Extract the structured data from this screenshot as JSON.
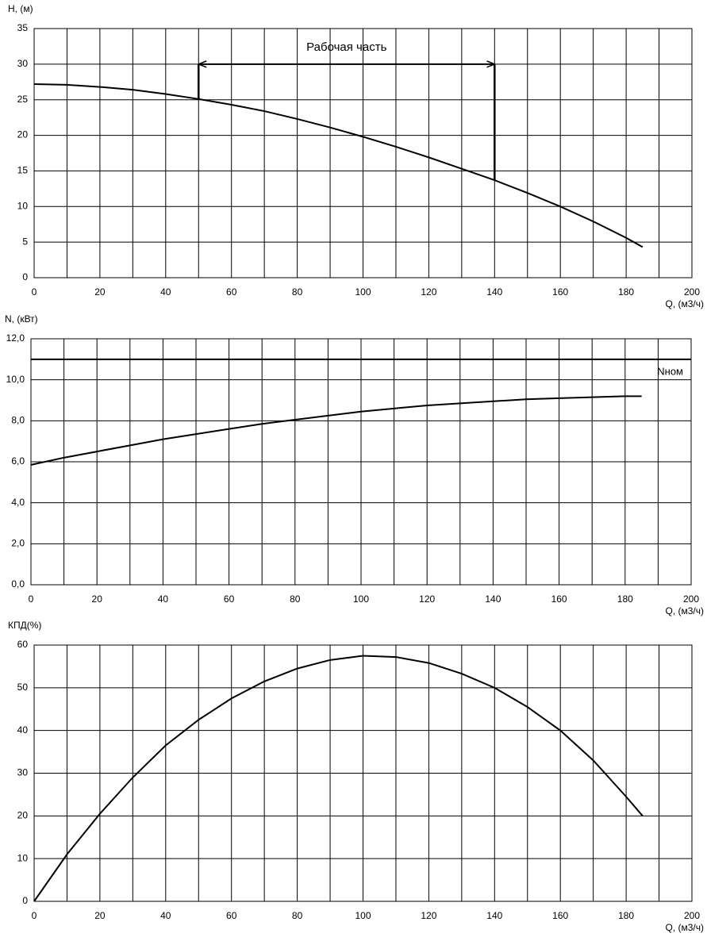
{
  "chart_data": [
    {
      "type": "line",
      "y_label": "H, (м)",
      "x_label": "Q, (м3/ч)",
      "xlim": [
        0,
        200
      ],
      "ylim": [
        0,
        35
      ],
      "xticks": [
        0,
        20,
        40,
        60,
        80,
        100,
        120,
        140,
        160,
        180,
        200
      ],
      "yticks": [
        0,
        5,
        10,
        15,
        20,
        25,
        30,
        35
      ],
      "xgrid": [
        0,
        10,
        20,
        30,
        40,
        50,
        60,
        70,
        80,
        90,
        100,
        110,
        120,
        130,
        140,
        150,
        160,
        170,
        180,
        190,
        200
      ],
      "grid": true,
      "x": [
        0,
        10,
        20,
        30,
        40,
        50,
        60,
        70,
        80,
        90,
        100,
        110,
        120,
        130,
        140,
        150,
        160,
        170,
        180,
        185
      ],
      "series": [
        {
          "color": "#000000",
          "values": [
            27.2,
            27.1,
            26.8,
            26.4,
            25.8,
            25.1,
            24.3,
            23.4,
            22.3,
            21.1,
            19.8,
            18.4,
            16.9,
            15.3,
            13.7,
            11.9,
            10.0,
            7.9,
            5.6,
            4.3
          ]
        }
      ],
      "annotation": {
        "text": "Рабочая часть",
        "x": [
          50,
          140
        ],
        "y": 30
      }
    },
    {
      "type": "line",
      "y_label": "N, (кВт)",
      "x_label": "Q, (м3/ч)",
      "xlim": [
        0,
        200
      ],
      "ylim": [
        0,
        12
      ],
      "xticks": [
        0,
        20,
        40,
        60,
        80,
        100,
        120,
        140,
        160,
        180,
        200
      ],
      "yticks": [
        {
          "value": 0,
          "label": "0,0"
        },
        {
          "value": 2,
          "label": "2,0"
        },
        {
          "value": 4,
          "label": "4,0"
        },
        {
          "value": 6,
          "label": "6,0"
        },
        {
          "value": 8,
          "label": "8,0"
        },
        {
          "value": 10,
          "label": "10,0"
        },
        {
          "value": 12,
          "label": "12,0"
        }
      ],
      "xgrid": [
        0,
        10,
        20,
        30,
        40,
        50,
        60,
        70,
        80,
        90,
        100,
        110,
        120,
        130,
        140,
        150,
        160,
        170,
        180,
        190,
        200
      ],
      "grid": true,
      "x": [
        0,
        10,
        20,
        30,
        40,
        50,
        60,
        70,
        80,
        90,
        100,
        110,
        120,
        130,
        140,
        150,
        160,
        170,
        180,
        185
      ],
      "series": [
        {
          "color": "#000000",
          "values": [
            5.85,
            6.2,
            6.5,
            6.8,
            7.1,
            7.35,
            7.6,
            7.85,
            8.05,
            8.25,
            8.45,
            8.6,
            8.75,
            8.85,
            8.95,
            9.05,
            9.1,
            9.15,
            9.2,
            9.2
          ]
        }
      ],
      "hlines": [
        {
          "value": 11,
          "label": "Nном"
        }
      ]
    },
    {
      "type": "line",
      "y_label": "КПД(%)",
      "x_label": "Q, (м3/ч)",
      "xlim": [
        0,
        200
      ],
      "ylim": [
        0,
        60
      ],
      "xticks": [
        0,
        20,
        40,
        60,
        80,
        100,
        120,
        140,
        160,
        180,
        200
      ],
      "yticks": [
        0,
        10,
        20,
        30,
        40,
        50,
        60
      ],
      "xgrid": [
        0,
        10,
        20,
        30,
        40,
        50,
        60,
        70,
        80,
        90,
        100,
        110,
        120,
        130,
        140,
        150,
        160,
        170,
        180,
        190,
        200
      ],
      "grid": true,
      "x": [
        0,
        10,
        20,
        30,
        40,
        50,
        60,
        70,
        80,
        90,
        100,
        110,
        120,
        130,
        140,
        150,
        160,
        170,
        180,
        185
      ],
      "series": [
        {
          "color": "#000000",
          "values": [
            0,
            11,
            20.5,
            29,
            36.5,
            42.5,
            47.5,
            51.5,
            54.5,
            56.5,
            57.5,
            57.2,
            55.8,
            53.3,
            50,
            45.5,
            40,
            33,
            24.5,
            20
          ]
        }
      ]
    }
  ]
}
